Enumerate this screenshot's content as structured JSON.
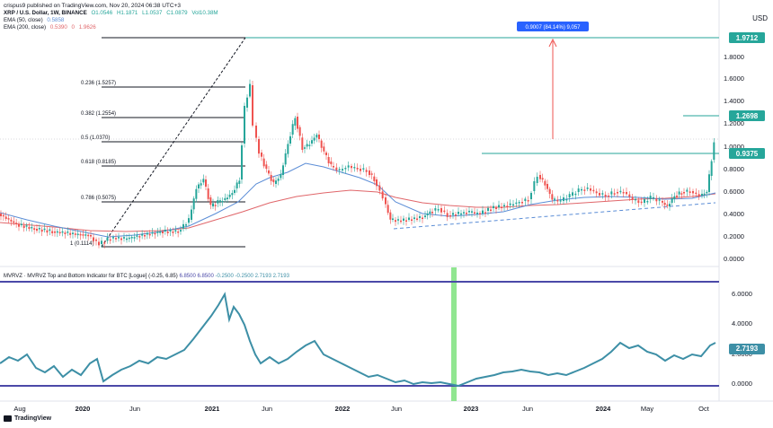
{
  "header": {
    "author_line": "crispus9 published on TradingView.com, Nov 20, 2024 06:38 UTC+3",
    "symbol_line": "XRP / U.S. Dollar, 1W, BINANCE",
    "ohlc": [
      "O1.0546",
      "H1.1871",
      "L1.0537",
      "C1.0879",
      "Vol10.38M"
    ],
    "ema50_label": "EMA (50, close)",
    "ema50_value": "0.5858",
    "ema200_label": "EMA (200, close)",
    "ema200_values": [
      "0.5390",
      "0",
      "1.9626"
    ],
    "currency": "USD"
  },
  "price_axis": {
    "ticks": [
      "1.8000",
      "1.6000",
      "1.4000",
      "1.2000",
      "1.0000",
      "0.8000",
      "0.6000",
      "0.4000",
      "0.2000",
      "0.0000"
    ],
    "badges": [
      {
        "label": "1.9712",
        "color": "#26a69a"
      },
      {
        "label": "1.2698",
        "color": "#26a69a"
      },
      {
        "label": "0.9375",
        "color": "#26a69a"
      }
    ]
  },
  "fibonacci": [
    {
      "label": "0.236 (1.5257)"
    },
    {
      "label": "0.382 (1.2554)"
    },
    {
      "label": "0.5 (1.0370)"
    },
    {
      "label": "0.618 (0.8185)"
    },
    {
      "label": "0.786 (0.5075)"
    },
    {
      "label": "1 (0.1114)"
    }
  ],
  "measure_label": "0.9007 (84.14%) 9,057",
  "indicator": {
    "legend": "MVRVZ · MVRVZ Top and Bottom Indicator for BTC [Logue]",
    "params": "(-0.25, 6.85)",
    "values": [
      "6.8500",
      "6.8500",
      "-0.2500",
      "-0.2500",
      "2.7193",
      "2.7193"
    ],
    "ticks": [
      "6.0000",
      "4.0000",
      "2.0000",
      "0.0000"
    ],
    "badge": "2.7193",
    "line_color": "#3d8fa6",
    "band_color": "#4b49a8"
  },
  "time_axis": [
    "Aug",
    "2020",
    "Jun",
    "2021",
    "Jun",
    "2022",
    "Jun",
    "2023",
    "Jun",
    "2024",
    "May",
    "Oct"
  ],
  "branding": "TradingView",
  "colors": {
    "up": "#26a69a",
    "down": "#ef5350",
    "ema50": "#5b8dd6",
    "ema200": "#e0666a",
    "accent": "#2962ff"
  }
}
